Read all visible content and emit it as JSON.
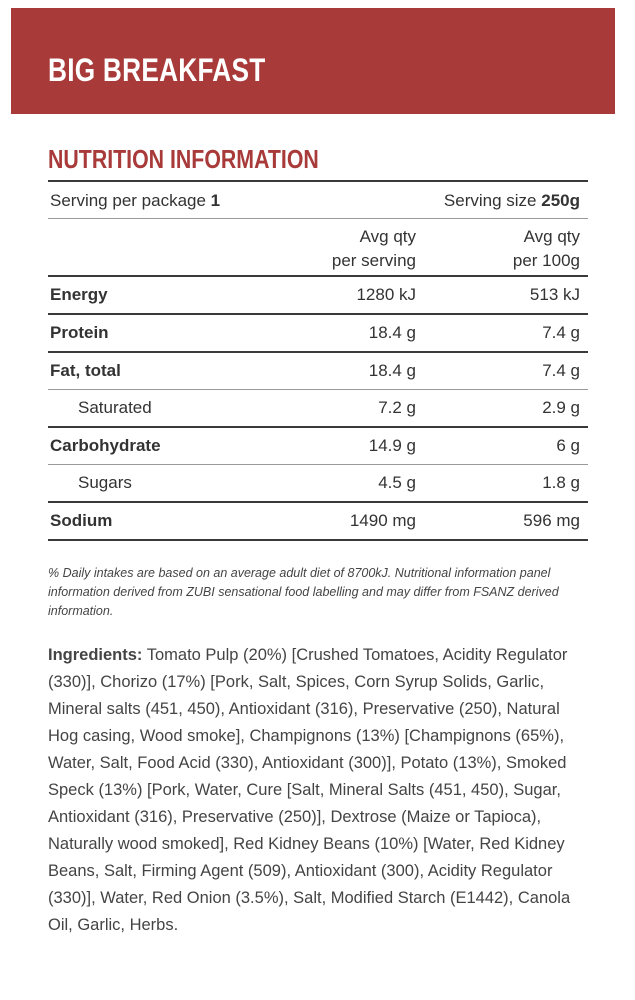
{
  "product_title": "BIG BREAKFAST",
  "section_title": "NUTRITION INFORMATION",
  "serving": {
    "per_package_label": "Serving per package",
    "per_package_value": "1",
    "size_label": "Serving size",
    "size_value": "250g"
  },
  "columns": {
    "col1_line1": "Avg qty",
    "col1_line2": "per serving",
    "col2_line1": "Avg qty",
    "col2_line2": "per 100g"
  },
  "rows": [
    {
      "label": "Energy",
      "per_serving": "1280 kJ",
      "per_100g": "513 kJ"
    },
    {
      "label": "Protein",
      "per_serving": "18.4 g",
      "per_100g": "7.4 g"
    },
    {
      "label": "Fat, total",
      "per_serving": "18.4 g",
      "per_100g": "7.4 g"
    },
    {
      "label": "Saturated",
      "per_serving": "7.2 g",
      "per_100g": "2.9 g"
    },
    {
      "label": "Carbohydrate",
      "per_serving": "14.9 g",
      "per_100g": "6 g"
    },
    {
      "label": "Sugars",
      "per_serving": "4.5 g",
      "per_100g": "1.8 g"
    },
    {
      "label": "Sodium",
      "per_serving": "1490 mg",
      "per_100g": "596 mg"
    }
  ],
  "footnote": "% Daily intakes are based on an average adult diet of 8700kJ. Nutritional information panel information derived from ZUBI sensational food labelling and may differ from FSANZ derived information.",
  "ingredients_label": "Ingredients:",
  "ingredients_text": " Tomato Pulp (20%) [Crushed Tomatoes, Acidity Regulator (330)], Chorizo (17%) [Pork, Salt, Spices, Corn Syrup Solids, Garlic, Mineral salts (451, 450), Antioxidant (316), Preservative (250), Natural Hog casing, Wood smoke], Champignons (13%) [Champignons (65%), Water, Salt, Food Acid (330), Antioxidant (300)], Potato (13%), Smoked Speck (13%) [Pork, Water, Cure [Salt, Mineral Salts (451, 450), Sugar, Antioxidant (316), Preservative (250)], Dextrose (Maize or Tapioca), Naturally wood smoked], Red Kidney Beans (10%) [Water, Red Kidney Beans, Salt, Firming Agent (509), Antioxidant (300), Acidity Regulator (330)], Water, Red Onion (3.5%), Salt, Modified Starch (E1442), Canola Oil, Garlic, Herbs.",
  "colors": {
    "brand_red": "#a83a3a"
  }
}
